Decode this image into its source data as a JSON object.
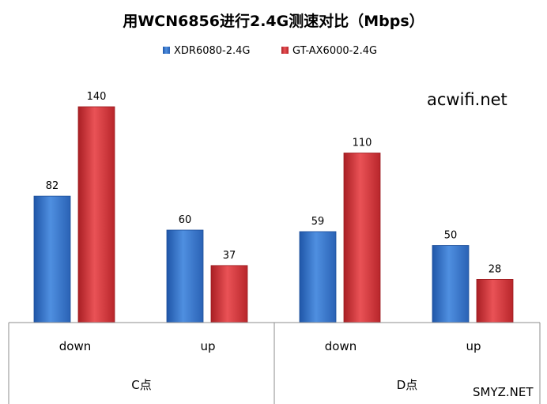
{
  "chart_data": {
    "type": "bar",
    "title": "用WCN6856进行2.4G测速对比（Mbps）",
    "groups": [
      {
        "label": "C点",
        "categories": [
          "down",
          "up"
        ]
      },
      {
        "label": "D点",
        "categories": [
          "down",
          "up"
        ]
      }
    ],
    "series": [
      {
        "name": "XDR6080-2.4G",
        "color": "#3c7bd0",
        "values": [
          82,
          60,
          59,
          50
        ]
      },
      {
        "name": "GT-AX6000-2.4G",
        "color": "#d83a3e",
        "values": [
          140,
          37,
          110,
          28
        ]
      }
    ],
    "ylim": [
      0,
      160
    ],
    "grid": false,
    "legend": "top-center"
  },
  "watermarks": {
    "site": "acwifi.net",
    "corner": "SMYZ.NET"
  }
}
